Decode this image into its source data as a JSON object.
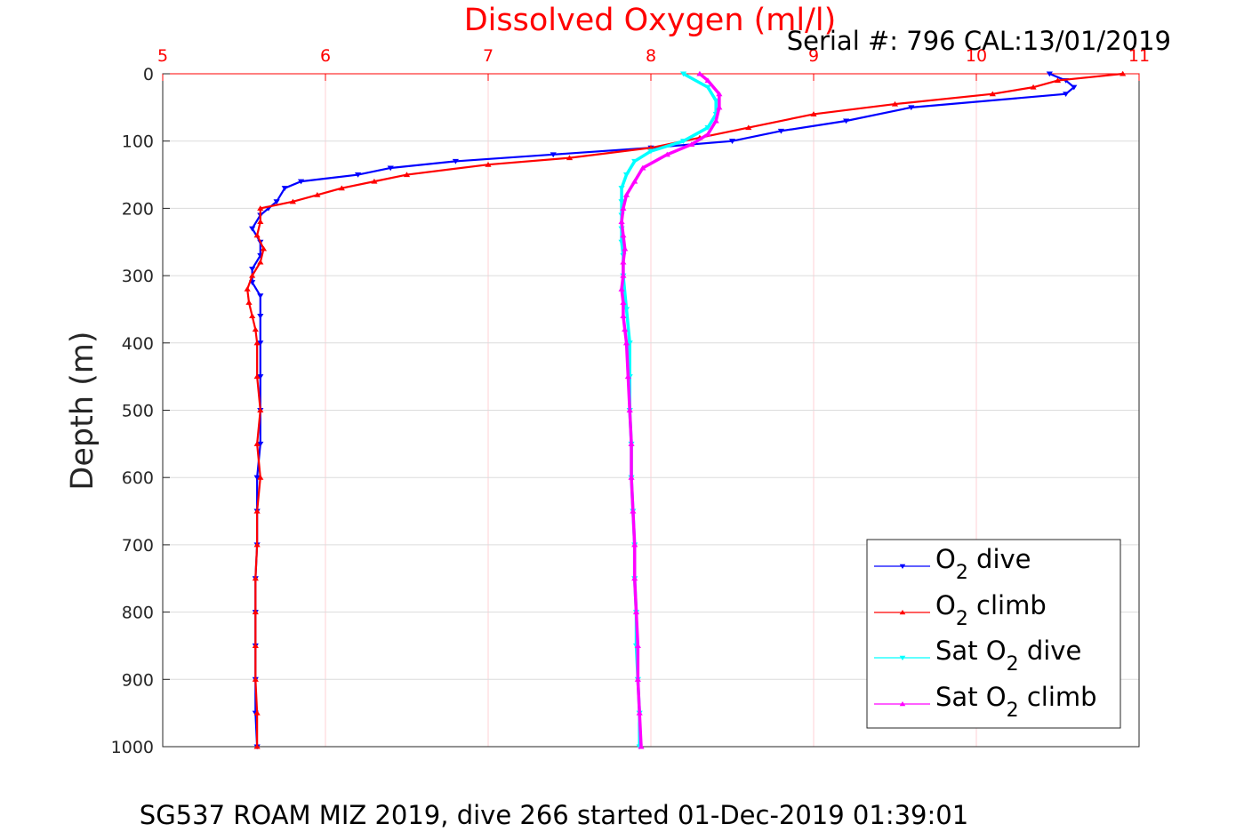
{
  "header": {
    "title": "Dissolved Oxygen (ml/l)",
    "serial": "Serial #: 796  CAL:13/01/2019"
  },
  "footer": {
    "caption": "SG537 ROAM MIZ 2019, dive 266 started 01-Dec-2019 01:39:01"
  },
  "colors": {
    "o2_dive": "#0000ff",
    "o2_climb": "#ff0000",
    "sat_dive": "#00ffff",
    "sat_climb": "#ff00ff",
    "x_axis": "#ff0000",
    "grid": "#ffd0d6",
    "hgrid": "#dcdcdc"
  },
  "chart_data": {
    "type": "scatter",
    "title": "Dissolved Oxygen (ml/l)",
    "xlabel": "",
    "ylabel": "Depth (m)",
    "xlim": [
      5,
      11
    ],
    "ylim": [
      0,
      1000
    ],
    "y_reversed": true,
    "x_axis_position": "top",
    "grid": true,
    "legend_position": "bottom-right",
    "x_ticks": [
      "5",
      "6",
      "7",
      "8",
      "9",
      "10",
      "11"
    ],
    "y_ticks": [
      "0",
      "100",
      "200",
      "300",
      "400",
      "500",
      "600",
      "700",
      "800",
      "900",
      "1000"
    ],
    "series": [
      {
        "name": "O2 dive",
        "marker": "down-triangle",
        "color": "#0000ff",
        "points": [
          [
            10.45,
            0
          ],
          [
            10.55,
            10
          ],
          [
            10.6,
            20
          ],
          [
            10.55,
            30
          ],
          [
            9.6,
            50
          ],
          [
            9.2,
            70
          ],
          [
            8.8,
            85
          ],
          [
            8.5,
            100
          ],
          [
            8.0,
            110
          ],
          [
            7.4,
            120
          ],
          [
            6.8,
            130
          ],
          [
            6.4,
            140
          ],
          [
            6.2,
            150
          ],
          [
            5.85,
            160
          ],
          [
            5.75,
            170
          ],
          [
            5.7,
            190
          ],
          [
            5.65,
            200
          ],
          [
            5.6,
            210
          ],
          [
            5.55,
            230
          ],
          [
            5.6,
            250
          ],
          [
            5.6,
            270
          ],
          [
            5.55,
            290
          ],
          [
            5.55,
            310
          ],
          [
            5.6,
            330
          ],
          [
            5.6,
            360
          ],
          [
            5.6,
            400
          ],
          [
            5.6,
            450
          ],
          [
            5.6,
            500
          ],
          [
            5.6,
            550
          ],
          [
            5.58,
            600
          ],
          [
            5.58,
            650
          ],
          [
            5.58,
            700
          ],
          [
            5.57,
            750
          ],
          [
            5.57,
            800
          ],
          [
            5.57,
            850
          ],
          [
            5.57,
            900
          ],
          [
            5.57,
            950
          ],
          [
            5.58,
            1000
          ]
        ]
      },
      {
        "name": "O2 climb",
        "marker": "up-triangle",
        "color": "#ff0000",
        "points": [
          [
            10.9,
            0
          ],
          [
            10.5,
            10
          ],
          [
            10.35,
            20
          ],
          [
            10.1,
            30
          ],
          [
            9.5,
            45
          ],
          [
            9.0,
            60
          ],
          [
            8.6,
            80
          ],
          [
            8.3,
            95
          ],
          [
            8.0,
            110
          ],
          [
            7.5,
            125
          ],
          [
            7.0,
            135
          ],
          [
            6.5,
            150
          ],
          [
            6.3,
            160
          ],
          [
            6.1,
            170
          ],
          [
            5.95,
            180
          ],
          [
            5.8,
            190
          ],
          [
            5.6,
            200
          ],
          [
            5.6,
            220
          ],
          [
            5.58,
            240
          ],
          [
            5.62,
            260
          ],
          [
            5.6,
            280
          ],
          [
            5.55,
            300
          ],
          [
            5.52,
            320
          ],
          [
            5.53,
            340
          ],
          [
            5.55,
            360
          ],
          [
            5.57,
            380
          ],
          [
            5.58,
            400
          ],
          [
            5.58,
            450
          ],
          [
            5.6,
            500
          ],
          [
            5.58,
            550
          ],
          [
            5.6,
            600
          ],
          [
            5.58,
            650
          ],
          [
            5.58,
            700
          ],
          [
            5.57,
            750
          ],
          [
            5.57,
            800
          ],
          [
            5.57,
            850
          ],
          [
            5.57,
            900
          ],
          [
            5.58,
            950
          ],
          [
            5.58,
            1000
          ]
        ]
      },
      {
        "name": "Sat O2 dive",
        "marker": "down-triangle",
        "color": "#00ffff",
        "points": [
          [
            8.2,
            0
          ],
          [
            8.35,
            20
          ],
          [
            8.4,
            40
          ],
          [
            8.4,
            60
          ],
          [
            8.35,
            80
          ],
          [
            8.2,
            100
          ],
          [
            8.0,
            115
          ],
          [
            7.9,
            130
          ],
          [
            7.85,
            150
          ],
          [
            7.82,
            170
          ],
          [
            7.82,
            190
          ],
          [
            7.82,
            210
          ],
          [
            7.82,
            230
          ],
          [
            7.82,
            250
          ],
          [
            7.83,
            270
          ],
          [
            7.83,
            300
          ],
          [
            7.85,
            350
          ],
          [
            7.87,
            400
          ],
          [
            7.87,
            450
          ],
          [
            7.87,
            500
          ],
          [
            7.88,
            550
          ],
          [
            7.88,
            600
          ],
          [
            7.89,
            650
          ],
          [
            7.9,
            700
          ],
          [
            7.9,
            750
          ],
          [
            7.91,
            800
          ],
          [
            7.91,
            850
          ],
          [
            7.92,
            900
          ],
          [
            7.93,
            950
          ],
          [
            7.93,
            1000
          ]
        ]
      },
      {
        "name": "Sat O2 climb",
        "marker": "up-triangle",
        "color": "#ff00ff",
        "points": [
          [
            8.3,
            0
          ],
          [
            8.35,
            10
          ],
          [
            8.42,
            30
          ],
          [
            8.42,
            50
          ],
          [
            8.4,
            70
          ],
          [
            8.35,
            90
          ],
          [
            8.25,
            105
          ],
          [
            8.1,
            120
          ],
          [
            7.95,
            140
          ],
          [
            7.9,
            160
          ],
          [
            7.85,
            180
          ],
          [
            7.83,
            200
          ],
          [
            7.82,
            220
          ],
          [
            7.83,
            240
          ],
          [
            7.84,
            260
          ],
          [
            7.83,
            280
          ],
          [
            7.83,
            300
          ],
          [
            7.82,
            320
          ],
          [
            7.83,
            340
          ],
          [
            7.83,
            360
          ],
          [
            7.84,
            380
          ],
          [
            7.85,
            400
          ],
          [
            7.86,
            450
          ],
          [
            7.87,
            500
          ],
          [
            7.88,
            550
          ],
          [
            7.88,
            600
          ],
          [
            7.89,
            650
          ],
          [
            7.9,
            700
          ],
          [
            7.9,
            750
          ],
          [
            7.91,
            800
          ],
          [
            7.92,
            850
          ],
          [
            7.92,
            900
          ],
          [
            7.93,
            950
          ],
          [
            7.94,
            1000
          ]
        ]
      }
    ]
  }
}
